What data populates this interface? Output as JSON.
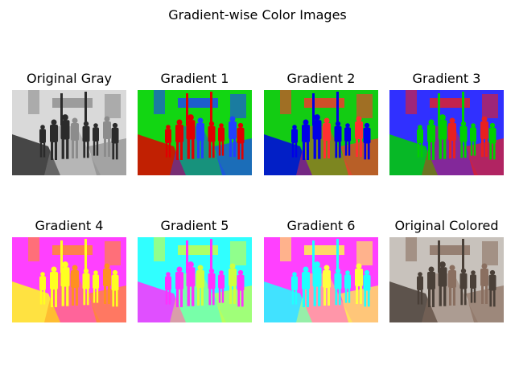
{
  "figure": {
    "title": "Gradient-wise Color Images",
    "panels": [
      {
        "title": "Original Gray",
        "palette": [
          "#2b2b2b",
          "#d9d9d9",
          "#8c8c8c"
        ]
      },
      {
        "title": "Gradient 1",
        "palette": [
          "#e00000",
          "#12d612",
          "#2040ff"
        ]
      },
      {
        "title": "Gradient 2",
        "palette": [
          "#0000e6",
          "#13cc13",
          "#ff3030"
        ]
      },
      {
        "title": "Gradient 3",
        "palette": [
          "#00d000",
          "#3030ff",
          "#e82020"
        ]
      },
      {
        "title": "Gradient 4",
        "palette": [
          "#ffff20",
          "#ff40ff",
          "#ff9020"
        ]
      },
      {
        "title": "Gradient 5",
        "palette": [
          "#ff30ff",
          "#30ffff",
          "#d0ff40"
        ]
      },
      {
        "title": "Gradient 6",
        "palette": [
          "#20ffff",
          "#ff40ff",
          "#ffff40"
        ]
      },
      {
        "title": "Original Colored",
        "palette": [
          "#4a4038",
          "#c8c2bc",
          "#8a6f60"
        ]
      }
    ]
  }
}
